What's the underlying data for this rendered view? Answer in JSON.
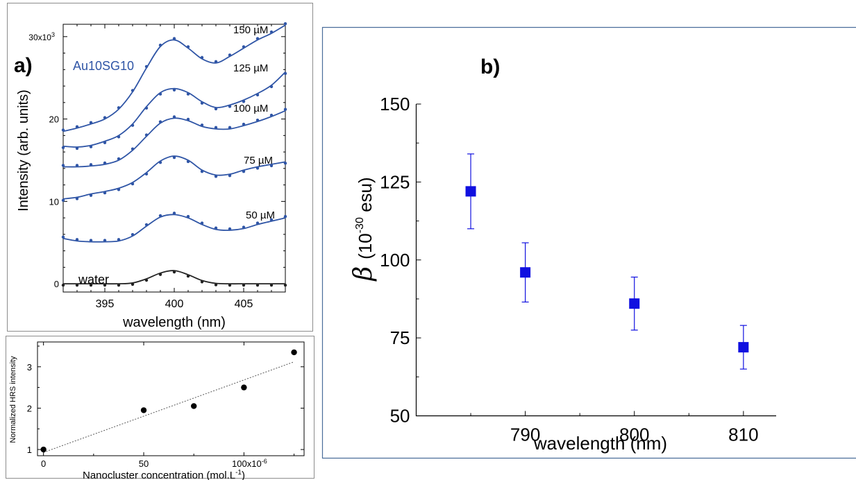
{
  "chart_data": [
    {
      "panel_label": "a)",
      "type": "line",
      "annotation": "Au10SG10",
      "xlabel": "wavelength (nm)",
      "ylabel": "Intensity (arb. units)",
      "xlim": [
        392,
        408
      ],
      "ylim": [
        -1,
        31.5
      ],
      "x_ticks": [
        395,
        400,
        405
      ],
      "y_ticks": [
        0,
        10,
        20
      ],
      "y_top_tick_label": "30x10",
      "y_top_tick_exponent": "3",
      "series": [
        {
          "name": "150 µM",
          "color": "#2f55a6",
          "x": [
            392,
            393,
            394,
            395,
            396,
            397,
            398,
            399,
            400,
            401,
            402,
            403,
            404,
            405,
            406,
            407,
            408
          ],
          "y": [
            18.5,
            18.9,
            19.4,
            20.0,
            21.2,
            23.3,
            26.2,
            28.8,
            29.6,
            28.6,
            27.3,
            26.8,
            27.6,
            28.6,
            29.6,
            30.4,
            31.4
          ]
        },
        {
          "name": "125 µM",
          "color": "#2f55a6",
          "x": [
            392,
            393,
            394,
            395,
            396,
            397,
            398,
            399,
            400,
            401,
            402,
            403,
            404,
            405,
            406,
            407,
            408
          ],
          "y": [
            16.7,
            16.6,
            16.8,
            17.3,
            18.0,
            19.4,
            21.5,
            23.2,
            23.7,
            23.2,
            22.1,
            21.4,
            21.7,
            22.3,
            23.1,
            24.1,
            25.7
          ]
        },
        {
          "name": "100 µM",
          "color": "#2f55a6",
          "x": [
            392,
            393,
            394,
            395,
            396,
            397,
            398,
            399,
            400,
            401,
            402,
            403,
            404,
            405,
            406,
            407,
            408
          ],
          "y": [
            14.2,
            14.2,
            14.3,
            14.5,
            15.0,
            16.2,
            17.9,
            19.5,
            20.1,
            19.8,
            19.1,
            18.8,
            18.8,
            19.2,
            19.7,
            20.3,
            21.0
          ]
        },
        {
          "name": "75 µM",
          "color": "#2f55a6",
          "x": [
            392,
            393,
            394,
            395,
            396,
            397,
            398,
            399,
            400,
            401,
            402,
            403,
            404,
            405,
            406,
            407,
            408
          ],
          "y": [
            10.3,
            10.5,
            10.9,
            11.2,
            11.6,
            12.3,
            13.5,
            14.9,
            15.5,
            15.0,
            13.8,
            13.2,
            13.3,
            13.8,
            14.2,
            14.5,
            14.8
          ]
        },
        {
          "name": "50 µM",
          "color": "#2f55a6",
          "x": [
            392,
            393,
            394,
            395,
            396,
            397,
            398,
            399,
            400,
            401,
            402,
            403,
            404,
            405,
            406,
            407,
            408
          ],
          "y": [
            5.5,
            5.2,
            5.1,
            5.1,
            5.2,
            5.8,
            7.0,
            8.1,
            8.4,
            8.0,
            7.2,
            6.6,
            6.5,
            6.7,
            7.2,
            7.6,
            8.0
          ]
        },
        {
          "name": "water",
          "color": "#222222",
          "x": [
            392,
            393,
            394,
            395,
            396,
            397,
            398,
            399,
            400,
            401,
            402,
            403,
            404,
            405,
            406,
            407,
            408
          ],
          "y": [
            0,
            0,
            0,
            0,
            0,
            0.1,
            0.6,
            1.3,
            1.6,
            1.1,
            0.4,
            0.05,
            0,
            0,
            0,
            0,
            0
          ]
        }
      ]
    },
    {
      "type": "scatter",
      "xlabel": "Nanocluster concentration (mol.L",
      "xlabel_exponent": "-1",
      "xlabel_suffix": ")",
      "ylabel": "Normalized HRS intensity",
      "xlim": [
        -3,
        130
      ],
      "ylim": [
        0.85,
        3.6
      ],
      "x_ticks": [
        0,
        50
      ],
      "x_last_tick_label": "100x10",
      "x_last_tick_exponent": "-6",
      "y_ticks": [
        1,
        2,
        3
      ],
      "points": {
        "x": [
          0,
          50,
          75,
          100,
          125
        ],
        "y": [
          1.0,
          1.95,
          2.05,
          2.5,
          3.35
        ]
      },
      "fit_line": {
        "x": [
          0,
          125
        ],
        "y": [
          0.93,
          3.12
        ]
      }
    },
    {
      "panel_label": "b)",
      "type": "scatter",
      "xlabel": "wavelength (nm)",
      "ylabel_symbol": "β",
      "ylabel_units_open": "(10",
      "ylabel_exponent": "-30",
      "ylabel_units_close": " esu)",
      "xlim": [
        780,
        813
      ],
      "ylim": [
        50,
        150
      ],
      "x_ticks": [
        790,
        800,
        810
      ],
      "y_ticks": [
        50,
        75,
        100,
        125,
        150
      ],
      "marker_color": "#1010e0",
      "points": {
        "x": [
          785,
          790,
          800,
          810
        ],
        "y": [
          122,
          96,
          86,
          72
        ],
        "err": [
          12,
          9.5,
          8.5,
          7
        ]
      }
    }
  ]
}
